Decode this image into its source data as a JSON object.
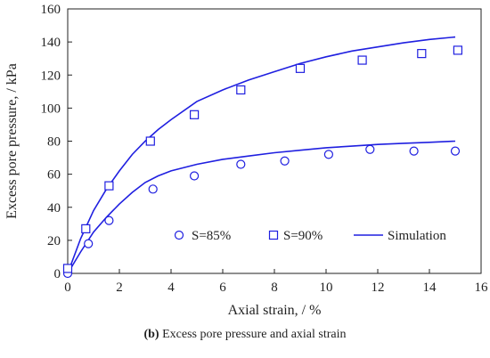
{
  "chart_data": {
    "type": "scatter",
    "xlabel": "Axial strain, / %",
    "ylabel": "Excess pore pressure, / kPa",
    "xlim": [
      0,
      16
    ],
    "ylim": [
      0,
      160
    ],
    "xticks": [
      0,
      2,
      4,
      6,
      8,
      10,
      12,
      14,
      16
    ],
    "yticks": [
      0,
      20,
      40,
      60,
      80,
      100,
      120,
      140,
      160
    ],
    "grid": false,
    "legend_position": "bottom-right",
    "series": [
      {
        "name": "S=85%",
        "kind": "scatter",
        "marker": "circle",
        "color": "#1f1fe0",
        "x": [
          0.0,
          0.8,
          1.6,
          3.3,
          4.9,
          6.7,
          8.4,
          10.1,
          11.7,
          13.4,
          15.0
        ],
        "y": [
          0,
          18,
          32,
          51,
          59,
          66,
          68,
          72,
          75,
          74,
          74
        ]
      },
      {
        "name": "S=90%",
        "kind": "scatter",
        "marker": "square",
        "color": "#1f1fe0",
        "x": [
          0.0,
          0.7,
          1.6,
          3.2,
          4.9,
          6.7,
          9.0,
          11.4,
          13.7,
          15.1
        ],
        "y": [
          3,
          27,
          53,
          80,
          96,
          111,
          124,
          129,
          133,
          135
        ]
      },
      {
        "name": "Simulation",
        "kind": "line",
        "color": "#1f1fe0",
        "x": [
          0,
          0.5,
          1.0,
          1.5,
          2.0,
          2.5,
          3.0,
          3.5,
          4.0,
          5.0,
          6.0,
          7.0,
          8.0,
          9.0,
          10.0,
          11.0,
          12.0,
          13.0,
          14.0,
          15.0
        ],
        "y": [
          0,
          13,
          25,
          34,
          42,
          49,
          55,
          59,
          62,
          66,
          69,
          71,
          73,
          74.5,
          76,
          77,
          78,
          78.7,
          79.3,
          80
        ]
      },
      {
        "name": "",
        "kind": "line",
        "color": "#1f1fe0",
        "x": [
          0,
          0.5,
          1.0,
          1.5,
          2.0,
          2.5,
          3.0,
          3.5,
          4.0,
          5.0,
          6.0,
          7.0,
          8.0,
          9.0,
          10.0,
          11.0,
          12.0,
          13.0,
          14.0,
          15.0
        ],
        "y": [
          0,
          21,
          38,
          51,
          62,
          72,
          80,
          87,
          93,
          104,
          111,
          117,
          122,
          127,
          131,
          134.5,
          137,
          139.5,
          141.5,
          143
        ]
      }
    ]
  },
  "caption": {
    "label": "(b)",
    "text": " Excess pore pressure and axial strain"
  }
}
